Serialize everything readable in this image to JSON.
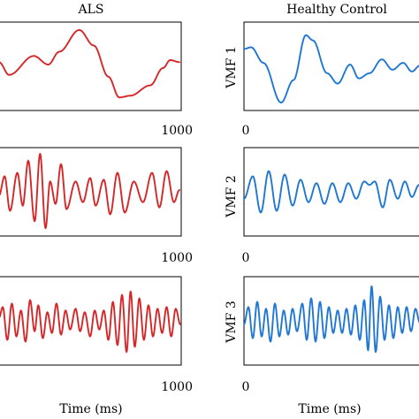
{
  "figure": {
    "titles": [
      "ALS",
      "Healthy Control"
    ],
    "xlabel": "Time (ms)"
  },
  "chart_data": [
    {
      "type": "line",
      "title": "ALS",
      "ylabel": "",
      "xlabel": "",
      "x_tick_labels": [
        "",
        "1000"
      ],
      "xlim": [
        0,
        1000
      ],
      "ylim": [
        -1.2,
        1.2
      ],
      "grid": false,
      "color": "#d62728",
      "series": [
        {
          "peaks": [
            [
              0,
              0.12
            ],
            [
              55,
              -0.25
            ],
            [
              190,
              0.3
            ],
            [
              270,
              0.05
            ],
            [
              330,
              0.42
            ],
            [
              440,
              1.05
            ],
            [
              520,
              0.6
            ],
            [
              600,
              -0.3
            ],
            [
              660,
              -0.9
            ],
            [
              720,
              -0.85
            ],
            [
              830,
              -0.55
            ],
            [
              900,
              -0.05
            ],
            [
              940,
              0.18
            ],
            [
              990,
              0.12
            ]
          ]
        }
      ]
    },
    {
      "type": "line",
      "title": "",
      "ylabel": "",
      "xlabel": "",
      "x_tick_labels": [
        "",
        "1000"
      ],
      "xlim": [
        0,
        1000
      ],
      "ylim": [
        -1.2,
        1.2
      ],
      "grid": false,
      "color": "#d62728",
      "series": [
        {
          "peaks": [
            [
              0,
              -0.1
            ],
            [
              30,
              0.45
            ],
            [
              60,
              -0.55
            ],
            [
              100,
              0.55
            ],
            [
              130,
              -0.4
            ],
            [
              160,
              0.9
            ],
            [
              195,
              -0.85
            ],
            [
              225,
              1.1
            ],
            [
              255,
              -1.05
            ],
            [
              280,
              0.3
            ],
            [
              310,
              -0.35
            ],
            [
              340,
              0.8
            ],
            [
              370,
              -0.5
            ],
            [
              420,
              0.3
            ],
            [
              460,
              -0.3
            ],
            [
              500,
              0.4
            ],
            [
              530,
              -0.4
            ],
            [
              575,
              0.35
            ],
            [
              610,
              -0.65
            ],
            [
              650,
              0.55
            ],
            [
              690,
              -0.6
            ],
            [
              740,
              0.3
            ],
            [
              790,
              -0.3
            ],
            [
              840,
              0.55
            ],
            [
              880,
              -0.45
            ],
            [
              920,
              0.6
            ],
            [
              960,
              -0.3
            ],
            [
              990,
              0.05
            ]
          ]
        }
      ]
    },
    {
      "type": "line",
      "title": "",
      "ylabel": "",
      "xlabel": "Time (ms)",
      "x_tick_labels": [
        "",
        "1000"
      ],
      "xlim": [
        0,
        1000
      ],
      "ylim": [
        -1.2,
        1.2
      ],
      "grid": false,
      "color": "#d62728",
      "series": [
        {
          "peaks": [
            [
              0,
              0.1
            ],
            [
              20,
              0.4
            ],
            [
              45,
              -0.55
            ],
            [
              70,
              0.5
            ],
            [
              95,
              -0.45
            ],
            [
              120,
              0.3
            ],
            [
              145,
              -0.6
            ],
            [
              170,
              0.6
            ],
            [
              195,
              -0.3
            ],
            [
              215,
              0.45
            ],
            [
              240,
              -0.5
            ],
            [
              265,
              0.25
            ],
            [
              290,
              -0.35
            ],
            [
              315,
              0.5
            ],
            [
              340,
              -0.4
            ],
            [
              365,
              0.3
            ],
            [
              390,
              -0.25
            ],
            [
              420,
              0.35
            ],
            [
              445,
              -0.3
            ],
            [
              470,
              0.25
            ],
            [
              500,
              -0.45
            ],
            [
              525,
              0.3
            ],
            [
              550,
              -0.25
            ],
            [
              575,
              0.3
            ],
            [
              600,
              -0.55
            ],
            [
              625,
              0.55
            ],
            [
              650,
              -0.7
            ],
            [
              675,
              0.75
            ],
            [
              700,
              -0.9
            ],
            [
              722,
              0.85
            ],
            [
              745,
              -0.75
            ],
            [
              770,
              0.65
            ],
            [
              795,
              -0.55
            ],
            [
              820,
              0.45
            ],
            [
              845,
              -0.45
            ],
            [
              870,
              0.35
            ],
            [
              895,
              -0.35
            ],
            [
              920,
              0.4
            ],
            [
              945,
              -0.45
            ],
            [
              970,
              0.35
            ],
            [
              995,
              -0.1
            ]
          ]
        }
      ]
    },
    {
      "type": "line",
      "title": "Healthy Control",
      "ylabel": "VMF 1",
      "xlabel": "",
      "x_tick_labels": [
        "0",
        ""
      ],
      "xlim": [
        0,
        1000
      ],
      "ylim": [
        -1.2,
        1.2
      ],
      "grid": false,
      "color": "#1f77d4",
      "series": [
        {
          "peaks": [
            [
              0,
              0.5
            ],
            [
              40,
              0.55
            ],
            [
              110,
              0.1
            ],
            [
              210,
              -1.05
            ],
            [
              280,
              -0.4
            ],
            [
              350,
              0.9
            ],
            [
              390,
              0.75
            ],
            [
              470,
              -0.2
            ],
            [
              530,
              -0.5
            ],
            [
              600,
              0.05
            ],
            [
              650,
              -0.35
            ],
            [
              710,
              -0.2
            ],
            [
              780,
              0.2
            ],
            [
              840,
              -0.1
            ],
            [
              900,
              0.1
            ],
            [
              950,
              -0.15
            ],
            [
              995,
              0.02
            ]
          ]
        }
      ]
    },
    {
      "type": "line",
      "title": "",
      "ylabel": "VMF 2",
      "xlabel": "",
      "x_tick_labels": [
        "0",
        ""
      ],
      "xlim": [
        0,
        1000
      ],
      "ylim": [
        -1.2,
        1.2
      ],
      "grid": false,
      "color": "#1f77d4",
      "series": [
        {
          "peaks": [
            [
              0,
              -0.2
            ],
            [
              50,
              0.45
            ],
            [
              95,
              -0.6
            ],
            [
              140,
              0.6
            ],
            [
              185,
              -0.55
            ],
            [
              230,
              0.5
            ],
            [
              275,
              -0.4
            ],
            [
              320,
              0.35
            ],
            [
              365,
              -0.3
            ],
            [
              410,
              0.25
            ],
            [
              455,
              -0.35
            ],
            [
              500,
              0.25
            ],
            [
              545,
              -0.3
            ],
            [
              590,
              0.25
            ],
            [
              635,
              -0.2
            ],
            [
              680,
              0.3
            ],
            [
              710,
              0.2
            ],
            [
              740,
              0.3
            ],
            [
              785,
              -0.45
            ],
            [
              825,
              0.35
            ],
            [
              870,
              -0.2
            ],
            [
              910,
              0.3
            ],
            [
              950,
              -0.15
            ],
            [
              990,
              0.2
            ]
          ]
        }
      ]
    },
    {
      "type": "line",
      "title": "",
      "ylabel": "VMF 3",
      "xlabel": "Time (ms)",
      "x_tick_labels": [
        "0",
        ""
      ],
      "xlim": [
        0,
        1000
      ],
      "ylim": [
        -1.2,
        1.2
      ],
      "grid": false,
      "color": "#1f77d4",
      "series": [
        {
          "peaks": [
            [
              0,
              -0.1
            ],
            [
              25,
              0.4
            ],
            [
              50,
              -0.5
            ],
            [
              75,
              0.55
            ],
            [
              100,
              -0.45
            ],
            [
              125,
              0.35
            ],
            [
              150,
              -0.6
            ],
            [
              175,
              0.5
            ],
            [
              200,
              -0.45
            ],
            [
              225,
              0.3
            ],
            [
              250,
              -0.4
            ],
            [
              275,
              0.35
            ],
            [
              300,
              -0.3
            ],
            [
              330,
              0.5
            ],
            [
              355,
              -0.55
            ],
            [
              380,
              0.65
            ],
            [
              405,
              -0.6
            ],
            [
              430,
              0.55
            ],
            [
              455,
              -0.5
            ],
            [
              480,
              0.4
            ],
            [
              505,
              -0.35
            ],
            [
              530,
              0.3
            ],
            [
              555,
              -0.35
            ],
            [
              580,
              0.35
            ],
            [
              605,
              -0.4
            ],
            [
              630,
              0.45
            ],
            [
              655,
              -0.55
            ],
            [
              680,
              0.6
            ],
            [
              702,
              -0.85
            ],
            [
              722,
              1.0
            ],
            [
              745,
              -0.9
            ],
            [
              770,
              0.7
            ],
            [
              795,
              -0.55
            ],
            [
              820,
              0.45
            ],
            [
              845,
              -0.5
            ],
            [
              870,
              0.4
            ],
            [
              895,
              -0.35
            ],
            [
              920,
              0.4
            ],
            [
              945,
              -0.3
            ],
            [
              970,
              0.35
            ],
            [
              995,
              -0.05
            ]
          ]
        }
      ]
    }
  ]
}
